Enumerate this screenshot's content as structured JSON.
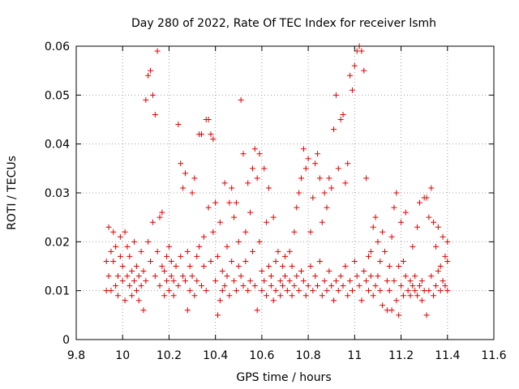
{
  "chart_data": {
    "type": "scatter",
    "title": "Day 280 of 2022, Rate Of TEC Index for receiver lsmh",
    "xlabel": "GPS time / hours",
    "ylabel": "ROTI / TECUs",
    "xlim": [
      9.8,
      11.6
    ],
    "ylim": [
      0,
      0.06
    ],
    "x_ticks": [
      9.8,
      10,
      10.2,
      10.4,
      10.6,
      10.8,
      11,
      11.2,
      11.4,
      11.6
    ],
    "x_tick_labels": [
      "9.8",
      "10",
      "10.2",
      "10.4",
      "10.6",
      "10.8",
      "11",
      "11.2",
      "11.4",
      "11.6"
    ],
    "y_ticks": [
      0,
      0.01,
      0.02,
      0.03,
      0.04,
      0.05,
      0.06
    ],
    "y_tick_labels": [
      "0",
      "0.01",
      "0.02",
      "0.03",
      "0.04",
      "0.05",
      "0.06"
    ],
    "grid": true,
    "marker": "+",
    "color": "#e00000",
    "points": [
      [
        9.93,
        0.01
      ],
      [
        9.93,
        0.016
      ],
      [
        9.94,
        0.023
      ],
      [
        9.94,
        0.013
      ],
      [
        9.95,
        0.018
      ],
      [
        9.95,
        0.01
      ],
      [
        9.96,
        0.022
      ],
      [
        9.96,
        0.016
      ],
      [
        9.97,
        0.011
      ],
      [
        9.97,
        0.019
      ],
      [
        9.98,
        0.013
      ],
      [
        9.98,
        0.009
      ],
      [
        9.99,
        0.017
      ],
      [
        9.99,
        0.021
      ],
      [
        10.0,
        0.012
      ],
      [
        10.0,
        0.015
      ],
      [
        10.01,
        0.022
      ],
      [
        10.01,
        0.008
      ],
      [
        10.02,
        0.019
      ],
      [
        10.02,
        0.013
      ],
      [
        10.03,
        0.011
      ],
      [
        10.03,
        0.017
      ],
      [
        10.04,
        0.009
      ],
      [
        10.04,
        0.014
      ],
      [
        10.05,
        0.012
      ],
      [
        10.05,
        0.02
      ],
      [
        10.06,
        0.01
      ],
      [
        10.06,
        0.015
      ],
      [
        10.07,
        0.013
      ],
      [
        10.07,
        0.008
      ],
      [
        10.08,
        0.011
      ],
      [
        10.08,
        0.018
      ],
      [
        10.09,
        0.006
      ],
      [
        10.09,
        0.014
      ],
      [
        10.1,
        0.049
      ],
      [
        10.1,
        0.012
      ],
      [
        10.11,
        0.054
      ],
      [
        10.11,
        0.02
      ],
      [
        10.12,
        0.055
      ],
      [
        10.12,
        0.016
      ],
      [
        10.13,
        0.05
      ],
      [
        10.13,
        0.024
      ],
      [
        10.14,
        0.046
      ],
      [
        10.14,
        0.013
      ],
      [
        10.15,
        0.059
      ],
      [
        10.15,
        0.018
      ],
      [
        10.16,
        0.011
      ],
      [
        10.16,
        0.025
      ],
      [
        10.17,
        0.015
      ],
      [
        10.17,
        0.026
      ],
      [
        10.18,
        0.014
      ],
      [
        10.18,
        0.009
      ],
      [
        10.19,
        0.017
      ],
      [
        10.19,
        0.012
      ],
      [
        10.2,
        0.019
      ],
      [
        10.2,
        0.01
      ],
      [
        10.21,
        0.013
      ],
      [
        10.21,
        0.016
      ],
      [
        10.22,
        0.012
      ],
      [
        10.22,
        0.009
      ],
      [
        10.23,
        0.015
      ],
      [
        10.24,
        0.044
      ],
      [
        10.24,
        0.011
      ],
      [
        10.25,
        0.036
      ],
      [
        10.25,
        0.017
      ],
      [
        10.26,
        0.013
      ],
      [
        10.26,
        0.031
      ],
      [
        10.27,
        0.034
      ],
      [
        10.27,
        0.012
      ],
      [
        10.28,
        0.006
      ],
      [
        10.28,
        0.018
      ],
      [
        10.29,
        0.01
      ],
      [
        10.29,
        0.015
      ],
      [
        10.3,
        0.03
      ],
      [
        10.3,
        0.013
      ],
      [
        10.31,
        0.033
      ],
      [
        10.31,
        0.009
      ],
      [
        10.32,
        0.017
      ],
      [
        10.32,
        0.012
      ],
      [
        10.33,
        0.042
      ],
      [
        10.33,
        0.019
      ],
      [
        10.34,
        0.042
      ],
      [
        10.34,
        0.011
      ],
      [
        10.35,
        0.021
      ],
      [
        10.35,
        0.015
      ],
      [
        10.36,
        0.045
      ],
      [
        10.36,
        0.01
      ],
      [
        10.37,
        0.045
      ],
      [
        10.37,
        0.027
      ],
      [
        10.38,
        0.042
      ],
      [
        10.38,
        0.016
      ],
      [
        10.39,
        0.041
      ],
      [
        10.39,
        0.022
      ],
      [
        10.4,
        0.028
      ],
      [
        10.4,
        0.012
      ],
      [
        10.41,
        0.005
      ],
      [
        10.41,
        0.017
      ],
      [
        10.42,
        0.008
      ],
      [
        10.42,
        0.024
      ],
      [
        10.43,
        0.01
      ],
      [
        10.43,
        0.014
      ],
      [
        10.44,
        0.032
      ],
      [
        10.44,
        0.011
      ],
      [
        10.45,
        0.019
      ],
      [
        10.45,
        0.013
      ],
      [
        10.46,
        0.028
      ],
      [
        10.46,
        0.009
      ],
      [
        10.47,
        0.031
      ],
      [
        10.47,
        0.016
      ],
      [
        10.48,
        0.025
      ],
      [
        10.48,
        0.012
      ],
      [
        10.49,
        0.028
      ],
      [
        10.49,
        0.01
      ],
      [
        10.5,
        0.015
      ],
      [
        10.5,
        0.02
      ],
      [
        10.51,
        0.049
      ],
      [
        10.51,
        0.013
      ],
      [
        10.52,
        0.038
      ],
      [
        10.52,
        0.011
      ],
      [
        10.53,
        0.022
      ],
      [
        10.53,
        0.016
      ],
      [
        10.54,
        0.032
      ],
      [
        10.54,
        0.01
      ],
      [
        10.55,
        0.026
      ],
      [
        10.55,
        0.012
      ],
      [
        10.56,
        0.035
      ],
      [
        10.56,
        0.018
      ],
      [
        10.57,
        0.039
      ],
      [
        10.57,
        0.011
      ],
      [
        10.58,
        0.033
      ],
      [
        10.58,
        0.006
      ],
      [
        10.59,
        0.038
      ],
      [
        10.59,
        0.02
      ],
      [
        10.6,
        0.014
      ],
      [
        10.6,
        0.01
      ],
      [
        10.61,
        0.035
      ],
      [
        10.61,
        0.012
      ],
      [
        10.62,
        0.024
      ],
      [
        10.62,
        0.009
      ],
      [
        10.63,
        0.031
      ],
      [
        10.63,
        0.015
      ],
      [
        10.64,
        0.013
      ],
      [
        10.64,
        0.011
      ],
      [
        10.65,
        0.025
      ],
      [
        10.65,
        0.008
      ],
      [
        10.66,
        0.016
      ],
      [
        10.66,
        0.01
      ],
      [
        10.67,
        0.018
      ],
      [
        10.68,
        0.012
      ],
      [
        10.68,
        0.009
      ],
      [
        10.69,
        0.015
      ],
      [
        10.69,
        0.011
      ],
      [
        10.7,
        0.013
      ],
      [
        10.7,
        0.017
      ],
      [
        10.71,
        0.01
      ],
      [
        10.72,
        0.018
      ],
      [
        10.72,
        0.012
      ],
      [
        10.73,
        0.009
      ],
      [
        10.73,
        0.015
      ],
      [
        10.74,
        0.022
      ],
      [
        10.74,
        0.011
      ],
      [
        10.75,
        0.027
      ],
      [
        10.75,
        0.013
      ],
      [
        10.76,
        0.03
      ],
      [
        10.76,
        0.01
      ],
      [
        10.77,
        0.033
      ],
      [
        10.77,
        0.014
      ],
      [
        10.78,
        0.039
      ],
      [
        10.78,
        0.012
      ],
      [
        10.79,
        0.035
      ],
      [
        10.79,
        0.009
      ],
      [
        10.8,
        0.037
      ],
      [
        10.8,
        0.011
      ],
      [
        10.81,
        0.022
      ],
      [
        10.81,
        0.015
      ],
      [
        10.82,
        0.029
      ],
      [
        10.82,
        0.01
      ],
      [
        10.83,
        0.036
      ],
      [
        10.83,
        0.013
      ],
      [
        10.84,
        0.038
      ],
      [
        10.84,
        0.011
      ],
      [
        10.85,
        0.033
      ],
      [
        10.85,
        0.016
      ],
      [
        10.86,
        0.024
      ],
      [
        10.86,
        0.009
      ],
      [
        10.87,
        0.03
      ],
      [
        10.87,
        0.012
      ],
      [
        10.88,
        0.027
      ],
      [
        10.88,
        0.01
      ],
      [
        10.89,
        0.033
      ],
      [
        10.89,
        0.014
      ],
      [
        10.9,
        0.031
      ],
      [
        10.9,
        0.011
      ],
      [
        10.91,
        0.043
      ],
      [
        10.91,
        0.008
      ],
      [
        10.92,
        0.05
      ],
      [
        10.92,
        0.012
      ],
      [
        10.93,
        0.035
      ],
      [
        10.93,
        0.01
      ],
      [
        10.94,
        0.045
      ],
      [
        10.94,
        0.013
      ],
      [
        10.95,
        0.046
      ],
      [
        10.95,
        0.011
      ],
      [
        10.96,
        0.032
      ],
      [
        10.96,
        0.015
      ],
      [
        10.97,
        0.036
      ],
      [
        10.97,
        0.009
      ],
      [
        10.98,
        0.054
      ],
      [
        10.98,
        0.012
      ],
      [
        10.99,
        0.051
      ],
      [
        10.99,
        0.01
      ],
      [
        11.0,
        0.056
      ],
      [
        11.0,
        0.016
      ],
      [
        11.01,
        0.059
      ],
      [
        11.01,
        0.013
      ],
      [
        11.02,
        0.06
      ],
      [
        11.02,
        0.011
      ],
      [
        11.03,
        0.059
      ],
      [
        11.03,
        0.008
      ],
      [
        11.04,
        0.055
      ],
      [
        11.04,
        0.014
      ],
      [
        11.05,
        0.033
      ],
      [
        11.05,
        0.012
      ],
      [
        11.06,
        0.017
      ],
      [
        11.06,
        0.01
      ],
      [
        11.07,
        0.018
      ],
      [
        11.07,
        0.013
      ],
      [
        11.08,
        0.023
      ],
      [
        11.08,
        0.009
      ],
      [
        11.09,
        0.025
      ],
      [
        11.09,
        0.011
      ],
      [
        11.1,
        0.013
      ],
      [
        11.1,
        0.02
      ],
      [
        11.11,
        0.016
      ],
      [
        11.11,
        0.01
      ],
      [
        11.12,
        0.022
      ],
      [
        11.12,
        0.007
      ],
      [
        11.13,
        0.018
      ],
      [
        11.14,
        0.012
      ],
      [
        11.14,
        0.006
      ],
      [
        11.15,
        0.015
      ],
      [
        11.15,
        0.01
      ],
      [
        11.16,
        0.021
      ],
      [
        11.16,
        0.006
      ],
      [
        11.17,
        0.027
      ],
      [
        11.17,
        0.012
      ],
      [
        11.18,
        0.03
      ],
      [
        11.18,
        0.008
      ],
      [
        11.19,
        0.015
      ],
      [
        11.19,
        0.005
      ],
      [
        11.2,
        0.011
      ],
      [
        11.2,
        0.024
      ],
      [
        11.21,
        0.016
      ],
      [
        11.21,
        0.009
      ],
      [
        11.22,
        0.013
      ],
      [
        11.22,
        0.026
      ],
      [
        11.23,
        0.01
      ],
      [
        11.24,
        0.012
      ],
      [
        11.24,
        0.009
      ],
      [
        11.25,
        0.011
      ],
      [
        11.25,
        0.019
      ],
      [
        11.26,
        0.01
      ],
      [
        11.26,
        0.013
      ],
      [
        11.27,
        0.023
      ],
      [
        11.27,
        0.009
      ],
      [
        11.28,
        0.011
      ],
      [
        11.28,
        0.028
      ],
      [
        11.29,
        0.012
      ],
      [
        11.29,
        0.008
      ],
      [
        11.3,
        0.029
      ],
      [
        11.3,
        0.01
      ],
      [
        11.31,
        0.029
      ],
      [
        11.31,
        0.005
      ],
      [
        11.32,
        0.025
      ],
      [
        11.32,
        0.01
      ],
      [
        11.33,
        0.031
      ],
      [
        11.33,
        0.013
      ],
      [
        11.34,
        0.024
      ],
      [
        11.34,
        0.009
      ],
      [
        11.35,
        0.019
      ],
      [
        11.35,
        0.011
      ],
      [
        11.36,
        0.023
      ],
      [
        11.36,
        0.014
      ],
      [
        11.37,
        0.015
      ],
      [
        11.37,
        0.01
      ],
      [
        11.38,
        0.021
      ],
      [
        11.38,
        0.012
      ],
      [
        11.39,
        0.017
      ],
      [
        11.39,
        0.011
      ],
      [
        11.4,
        0.02
      ],
      [
        11.4,
        0.016
      ],
      [
        11.4,
        0.01
      ]
    ]
  }
}
